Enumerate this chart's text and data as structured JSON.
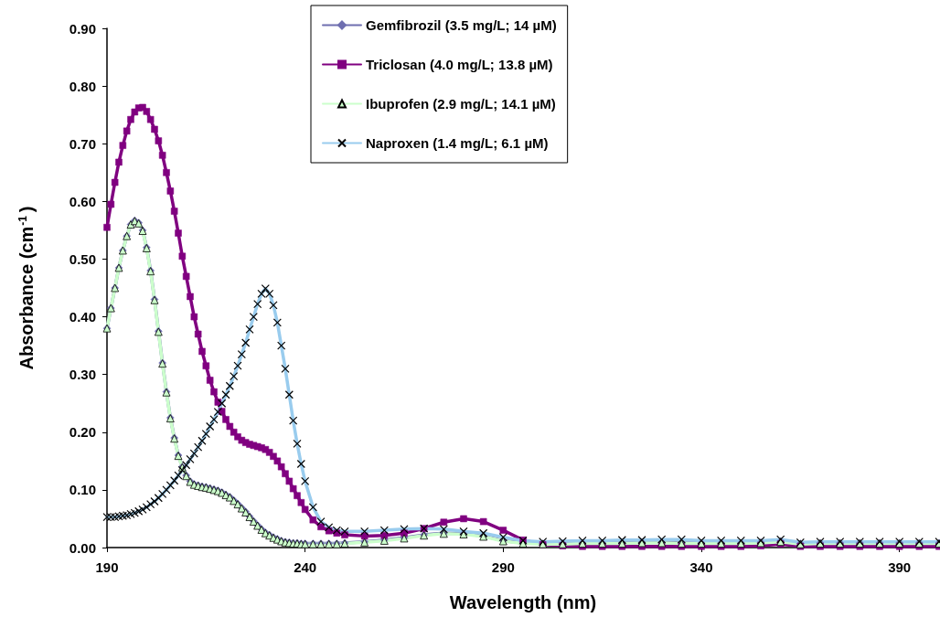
{
  "chart_data": {
    "type": "line",
    "xlabel": "Wavelength (nm)",
    "ylabel": "Absorbance (cm$^{-1}$)",
    "x": [
      190,
      191,
      192,
      193,
      194,
      195,
      196,
      197,
      198,
      199,
      200,
      201,
      202,
      203,
      204,
      205,
      206,
      207,
      208,
      209,
      210,
      211,
      212,
      213,
      214,
      215,
      216,
      217,
      218,
      219,
      220,
      221,
      222,
      223,
      224,
      225,
      226,
      227,
      228,
      229,
      230,
      231,
      232,
      233,
      234,
      235,
      236,
      237,
      238,
      239,
      240,
      242,
      244,
      246,
      248,
      250,
      255,
      260,
      265,
      270,
      275,
      280,
      285,
      290,
      295,
      300,
      305,
      310,
      315,
      320,
      325,
      330,
      335,
      340,
      345,
      350,
      355,
      360,
      365,
      370,
      375,
      380,
      385,
      390,
      395,
      400
    ],
    "xlim": [
      190,
      400
    ],
    "xticks": [
      190,
      240,
      290,
      340,
      390
    ],
    "ylim": [
      0,
      0.9
    ],
    "yticks": [
      {
        "value": 0,
        "label": "0.00"
      },
      {
        "value": 0.1,
        "label": "0.10"
      },
      {
        "value": 0.2,
        "label": "0.20"
      },
      {
        "value": 0.3,
        "label": "0.30"
      },
      {
        "value": 0.4,
        "label": "0.40"
      },
      {
        "value": 0.5,
        "label": "0.50"
      },
      {
        "value": 0.6,
        "label": "0.60"
      },
      {
        "value": 0.7,
        "label": "0.70"
      },
      {
        "value": 0.8,
        "label": "0.80"
      },
      {
        "value": 0.9,
        "label": "0.90"
      }
    ],
    "grid": false,
    "legend": "top",
    "line_style": "solid",
    "series": [
      {
        "name": "Gemfibrozil (3.5 mg/L; 14 µM)",
        "color": "#6f6fb0",
        "marker": "diamond",
        "values": [
          0.38,
          0.415,
          0.45,
          0.485,
          0.515,
          0.54,
          0.56,
          0.567,
          0.563,
          0.55,
          0.52,
          0.48,
          0.43,
          0.375,
          0.32,
          0.27,
          0.225,
          0.19,
          0.16,
          0.14,
          0.125,
          0.115,
          0.11,
          0.108,
          0.106,
          0.105,
          0.103,
          0.101,
          0.099,
          0.096,
          0.092,
          0.088,
          0.082,
          0.076,
          0.069,
          0.062,
          0.054,
          0.046,
          0.039,
          0.032,
          0.026,
          0.022,
          0.018,
          0.015,
          0.012,
          0.01,
          0.009,
          0.008,
          0.008,
          0.007,
          0.007,
          0.007,
          0.007,
          0.007,
          0.007,
          0.008,
          0.01,
          0.013,
          0.017,
          0.022,
          0.025,
          0.024,
          0.02,
          0.012,
          0.008,
          0.007,
          0.007,
          0.008,
          0.008,
          0.008,
          0.009,
          0.009,
          0.008,
          0.008,
          0.008,
          0.008,
          0.009,
          0.011,
          0.007,
          0.008,
          0.008,
          0.008,
          0.008,
          0.008,
          0.008,
          0.008
        ]
      },
      {
        "name": "Triclosan (4.0 mg/L; 13.8 µM)",
        "color": "#800080",
        "marker": "square",
        "values": [
          0.555,
          0.595,
          0.633,
          0.668,
          0.697,
          0.722,
          0.742,
          0.755,
          0.762,
          0.763,
          0.756,
          0.742,
          0.725,
          0.705,
          0.68,
          0.65,
          0.618,
          0.583,
          0.545,
          0.505,
          0.47,
          0.435,
          0.4,
          0.37,
          0.34,
          0.315,
          0.29,
          0.27,
          0.252,
          0.236,
          0.222,
          0.21,
          0.2,
          0.192,
          0.186,
          0.182,
          0.179,
          0.177,
          0.175,
          0.173,
          0.17,
          0.165,
          0.158,
          0.15,
          0.14,
          0.128,
          0.115,
          0.102,
          0.09,
          0.078,
          0.066,
          0.048,
          0.036,
          0.029,
          0.025,
          0.022,
          0.02,
          0.021,
          0.025,
          0.033,
          0.044,
          0.05,
          0.045,
          0.03,
          0.013,
          0.005,
          0.003,
          0.002,
          0.002,
          0.002,
          0.002,
          0.002,
          0.002,
          0.002,
          0.002,
          0.002,
          0.003,
          0.006,
          0.002,
          0.002,
          0.002,
          0.002,
          0.002,
          0.002,
          0.002,
          0.002
        ]
      },
      {
        "name": "Ibuprofen (2.9 mg/L; 14.1 µM)",
        "color": "#ccffcc",
        "marker": "triangle",
        "values": [
          0.38,
          0.415,
          0.45,
          0.485,
          0.515,
          0.54,
          0.56,
          0.566,
          0.562,
          0.549,
          0.519,
          0.479,
          0.429,
          0.374,
          0.319,
          0.269,
          0.224,
          0.189,
          0.159,
          0.139,
          0.124,
          0.114,
          0.109,
          0.107,
          0.105,
          0.104,
          0.102,
          0.1,
          0.098,
          0.095,
          0.091,
          0.087,
          0.081,
          0.075,
          0.068,
          0.061,
          0.053,
          0.045,
          0.038,
          0.031,
          0.025,
          0.021,
          0.017,
          0.014,
          0.011,
          0.009,
          0.008,
          0.007,
          0.007,
          0.006,
          0.006,
          0.006,
          0.006,
          0.006,
          0.006,
          0.007,
          0.009,
          0.012,
          0.016,
          0.021,
          0.024,
          0.023,
          0.019,
          0.011,
          0.007,
          0.006,
          0.006,
          0.007,
          0.007,
          0.007,
          0.008,
          0.008,
          0.007,
          0.007,
          0.007,
          0.007,
          0.008,
          0.01,
          0.006,
          0.007,
          0.007,
          0.007,
          0.007,
          0.007,
          0.007,
          0.007
        ]
      },
      {
        "name": "Naproxen (1.4 mg/L; 6.1 µM)",
        "color": "#99ccee",
        "marker": "cross",
        "values": [
          0.053,
          0.053,
          0.053,
          0.054,
          0.055,
          0.056,
          0.058,
          0.06,
          0.063,
          0.066,
          0.07,
          0.075,
          0.08,
          0.086,
          0.093,
          0.1,
          0.108,
          0.116,
          0.125,
          0.134,
          0.143,
          0.153,
          0.163,
          0.174,
          0.185,
          0.197,
          0.21,
          0.222,
          0.235,
          0.25,
          0.265,
          0.28,
          0.297,
          0.315,
          0.335,
          0.355,
          0.378,
          0.4,
          0.422,
          0.44,
          0.449,
          0.44,
          0.42,
          0.39,
          0.35,
          0.31,
          0.265,
          0.22,
          0.18,
          0.145,
          0.115,
          0.07,
          0.045,
          0.035,
          0.03,
          0.028,
          0.028,
          0.03,
          0.032,
          0.033,
          0.032,
          0.028,
          0.025,
          0.018,
          0.012,
          0.01,
          0.011,
          0.012,
          0.012,
          0.013,
          0.013,
          0.014,
          0.014,
          0.012,
          0.012,
          0.012,
          0.012,
          0.014,
          0.009,
          0.01,
          0.01,
          0.01,
          0.01,
          0.01,
          0.01,
          0.01
        ]
      }
    ]
  }
}
